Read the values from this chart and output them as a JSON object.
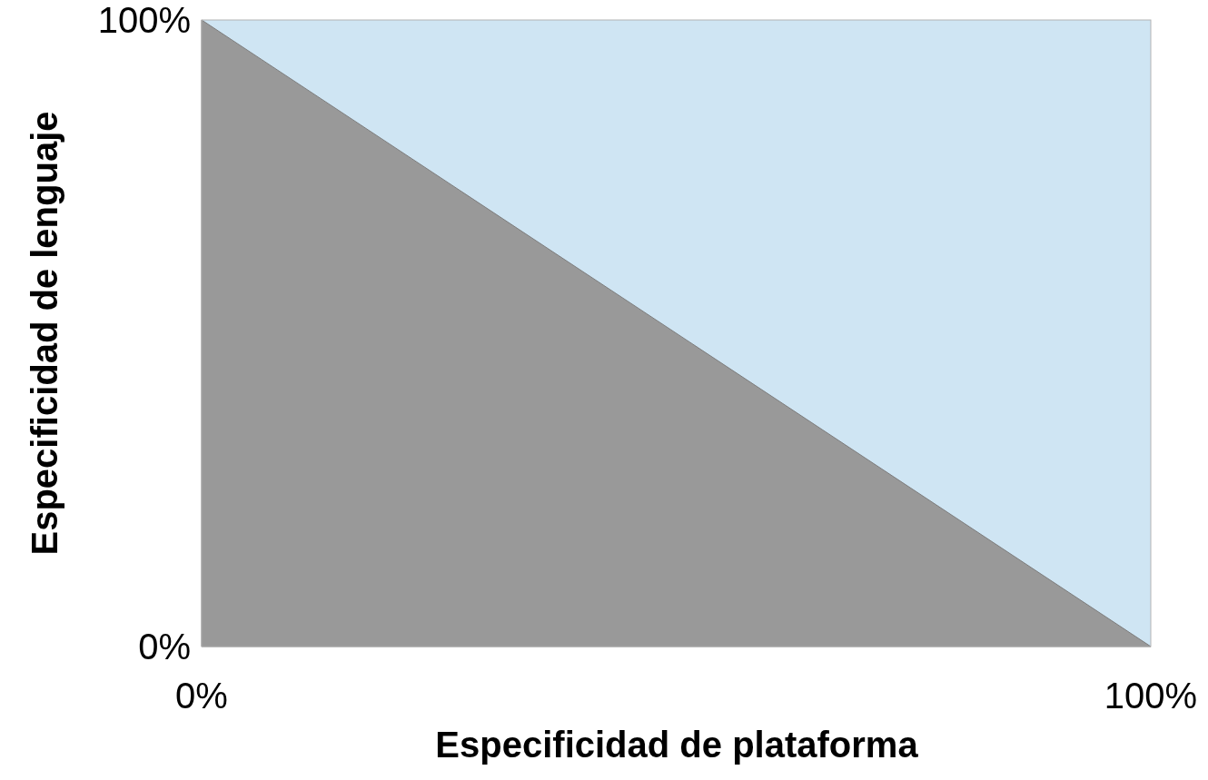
{
  "chart_data": {
    "type": "area",
    "xlabel": "Especificidad de plataforma",
    "ylabel": "Especificidad de lenguaje",
    "x": [
      0,
      100
    ],
    "series": [
      {
        "color": "#999999",
        "values": [
          100,
          0
        ]
      }
    ],
    "xlim": [
      0,
      100
    ],
    "ylim": [
      0,
      100
    ],
    "xticks": [
      {
        "value": 0,
        "label": "0%"
      },
      {
        "value": 100,
        "label": "100%"
      }
    ],
    "yticks": [
      {
        "value": 0,
        "label": "0%"
      },
      {
        "value": 100,
        "label": "100%"
      }
    ],
    "grid": false
  }
}
